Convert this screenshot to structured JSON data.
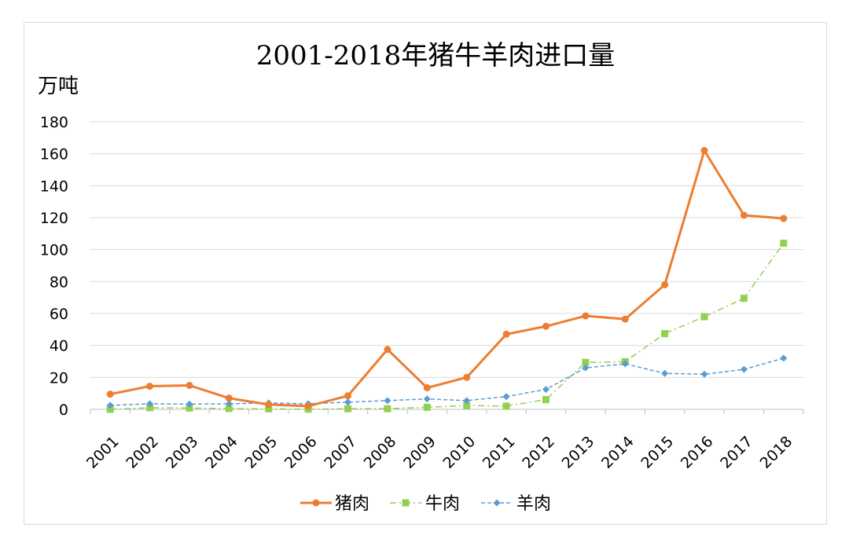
{
  "chart_data": {
    "type": "line",
    "title": "2001-2018年猪牛羊肉进口量",
    "unit_label": "万吨",
    "xlabel": "",
    "ylabel": "",
    "ylim": [
      0,
      180
    ],
    "yticks": [
      "0",
      "20",
      "40",
      "60",
      "80",
      "100",
      "120",
      "140",
      "160",
      "180"
    ],
    "categories": [
      "2001",
      "2002",
      "2003",
      "2004",
      "2005",
      "2006",
      "2007",
      "2008",
      "2009",
      "2010",
      "2011",
      "2012",
      "2013",
      "2014",
      "2015",
      "2016",
      "2017",
      "2018"
    ],
    "grid": true,
    "legend_position": "bottom",
    "series": [
      {
        "name": "猪肉",
        "color": "#ED7D31",
        "marker": "circle",
        "line": "solid",
        "values": [
          9.5,
          14.5,
          15,
          7,
          3,
          2,
          8.5,
          37.5,
          13.5,
          20,
          47,
          52,
          58.5,
          56.5,
          78,
          162,
          121.5,
          119.5
        ]
      },
      {
        "name": "牛肉",
        "color": "#92D050",
        "marker": "square",
        "line": "dashdot",
        "values": [
          0,
          1,
          0.8,
          0.5,
          0.3,
          0.1,
          0.4,
          0.4,
          1.3,
          2.4,
          2,
          6.1,
          29.4,
          29.8,
          47.4,
          58,
          69.5,
          104
        ]
      },
      {
        "name": "羊肉",
        "color": "#5B9BD5",
        "marker": "diamond",
        "line": "dashed",
        "values": [
          2.5,
          3.5,
          3.3,
          3.5,
          4,
          3.5,
          4.5,
          5.5,
          6.5,
          5.5,
          8,
          12.5,
          26,
          28.5,
          22.5,
          22,
          25,
          32
        ]
      }
    ]
  }
}
